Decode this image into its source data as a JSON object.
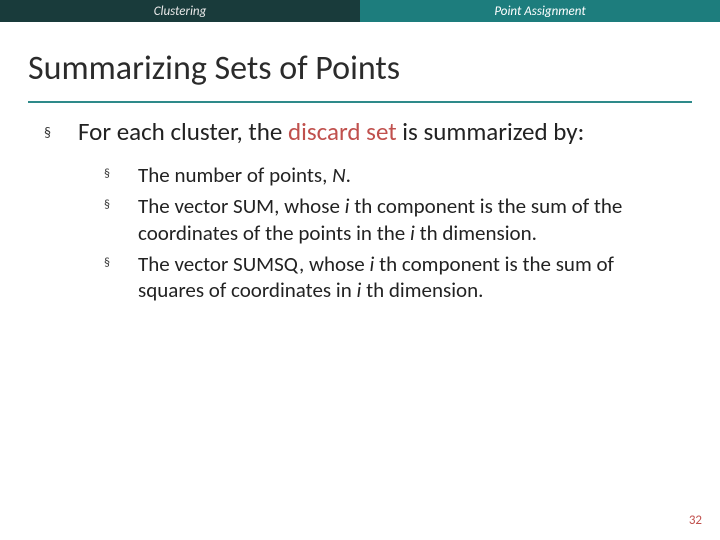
{
  "tabs": {
    "left": "Clustering",
    "right": "Point Assignment"
  },
  "title": "Summarizing Sets of Points",
  "colors": {
    "tab_dark_bg": "#193b3b",
    "tab_teal_bg": "#1d7d7d",
    "title_rule": "#2e8a8a",
    "highlight": "#c0504d",
    "pagenum": "#c0504d",
    "text": "#222222"
  },
  "typography": {
    "title_fontsize": 34,
    "lvl1_fontsize": 25,
    "lvl2_fontsize": 21,
    "tab_fontsize": 13,
    "pagenum_fontsize": 13
  },
  "bullets": {
    "lvl1_glyph": "§",
    "lvl2_glyph": "§"
  },
  "main": {
    "pre": "For each cluster, the ",
    "hl": "discard set",
    "post": " is summarized by:"
  },
  "sub": [
    {
      "t0": "The number of points, ",
      "i0": "N",
      "t1": "."
    },
    {
      "t0": "The vector SUM, whose ",
      "i0": "i ",
      "sup0": "th",
      "t1": " component is the sum of the coordinates of the points in the ",
      "i1": "i ",
      "sup1": "th",
      "t2": " dimension."
    },
    {
      "t0": "The vector SUMSQ, whose ",
      "i0": "i ",
      "sup0": "th",
      "t1": " component is the sum of squares of coordinates in ",
      "i1": "i ",
      "sup1": "th",
      "t2": " dimension."
    }
  ],
  "pagenum": "32"
}
